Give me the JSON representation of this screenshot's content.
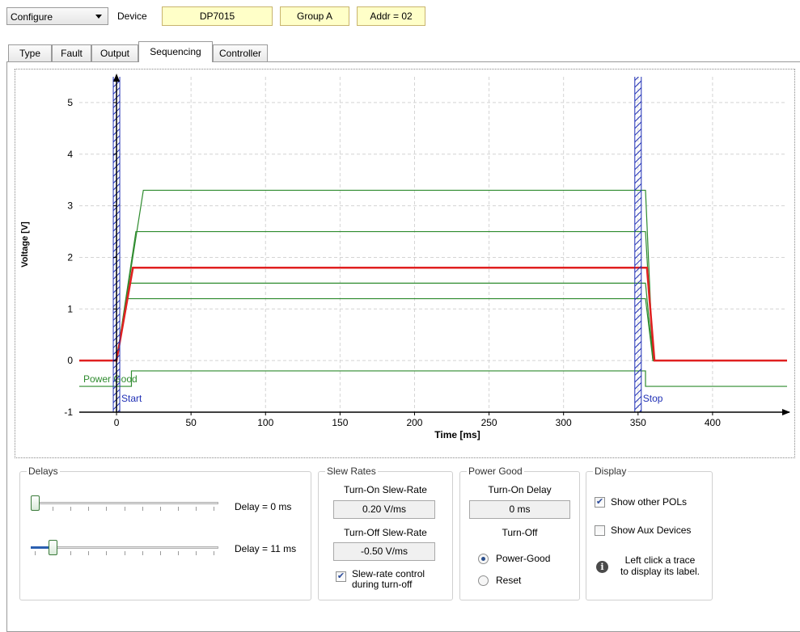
{
  "toolbar": {
    "mode_value": "Configure",
    "device_label": "Device",
    "device_name": "DP7015",
    "group": "Group A",
    "address": "Addr = 02"
  },
  "tabs": [
    "Type",
    "Fault",
    "Output",
    "Sequencing",
    "Controller"
  ],
  "active_tab": "Sequencing",
  "chart_data": {
    "type": "line",
    "xlabel": "Time [ms]",
    "ylabel": "Voltage [V]",
    "xlim": [
      -25,
      450
    ],
    "ylim": [
      -1,
      5.5
    ],
    "xticks": [
      0,
      50,
      100,
      150,
      200,
      250,
      300,
      350,
      400
    ],
    "yticks": [
      -1,
      0,
      1,
      2,
      3,
      4,
      5
    ],
    "grid": true,
    "colors": {
      "selected": "#e02020",
      "others": "#2e8b2e",
      "power_good": "#2e8b2e",
      "markers": "#1f2fb5"
    },
    "series": [
      {
        "x": [
          -25,
          0,
          18,
          355,
          360,
          450
        ],
        "y": [
          0,
          0,
          3.3,
          3.3,
          0,
          0
        ]
      },
      {
        "x": [
          -25,
          0,
          13,
          355,
          360,
          450
        ],
        "y": [
          0,
          0,
          2.5,
          2.5,
          0,
          0
        ]
      },
      {
        "x": [
          -25,
          0,
          8,
          355,
          360,
          450
        ],
        "y": [
          0,
          0,
          1.5,
          1.5,
          0,
          0
        ]
      },
      {
        "x": [
          -25,
          0,
          7,
          355,
          360,
          450
        ],
        "y": [
          0,
          0,
          1.2,
          1.2,
          0,
          0
        ]
      },
      {
        "x": [
          -25,
          0,
          11,
          17,
          350,
          356,
          361,
          450
        ],
        "y": [
          0,
          0,
          1.8,
          1.8,
          1.8,
          1.8,
          0,
          0
        ],
        "selected": true
      },
      {
        "name": "Power Good",
        "x": [
          -25,
          10,
          10,
          355,
          355,
          450
        ],
        "y": [
          -0.5,
          -0.5,
          -0.2,
          -0.2,
          -0.5,
          -0.5
        ],
        "kind": "power_good"
      }
    ],
    "markers": [
      {
        "label": "Start",
        "x": 0
      },
      {
        "label": "Stop",
        "x": 350
      }
    ]
  },
  "delays": {
    "title": "Delays",
    "slider1_label": "Delay = 0 ms",
    "slider1_value": 0,
    "slider2_label": "Delay = 11 ms",
    "slider2_value": 0.1
  },
  "slew_rates": {
    "title": "Slew Rates",
    "turn_on_label": "Turn-On Slew-Rate",
    "turn_on_value": "0.20 V/ms",
    "turn_off_label": "Turn-Off Slew-Rate",
    "turn_off_value": "-0.50 V/ms",
    "control_label_line1": "Slew-rate control",
    "control_label_line2": "during turn-off",
    "control_checked": true
  },
  "power_good": {
    "title": "Power Good",
    "turn_on_delay_label": "Turn-On Delay",
    "turn_on_delay_value": "0 ms",
    "turn_off_label": "Turn-Off",
    "option_power_good": "Power-Good",
    "option_reset": "Reset",
    "selected": "Power-Good"
  },
  "display": {
    "title": "Display",
    "show_other_pols": "Show other POLs",
    "show_other_pols_checked": true,
    "show_aux_devices": "Show Aux Devices",
    "show_aux_devices_checked": false,
    "hint_line1": "Left click a trace",
    "hint_line2": "to display its label."
  }
}
